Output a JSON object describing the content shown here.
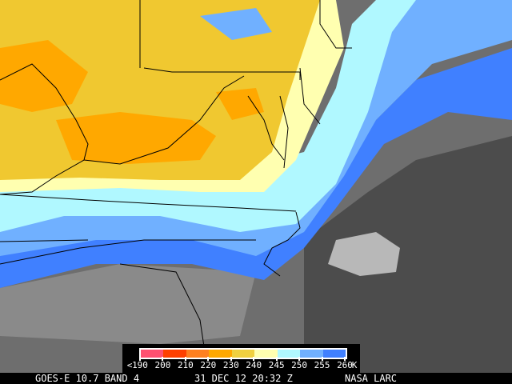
{
  "footer": {
    "satellite": "GOES-E 10.7 BAND 4",
    "datetime": "31 DEC 12 20:32 Z",
    "credit": "NASA LARC"
  },
  "legend": {
    "less_than": "<",
    "unit": "K",
    "ticks": [
      "190",
      "200",
      "210",
      "220",
      "230",
      "240",
      "245",
      "250",
      "255",
      "260"
    ],
    "colors": [
      "#ff5070",
      "#ff4000",
      "#ff8020",
      "#ffa800",
      "#f0d040",
      "#ffffb0",
      "#b0f8ff",
      "#70b0ff",
      "#4080ff"
    ]
  },
  "map_colors": {
    "warm_cloud_free": "#f0c830",
    "orange": "#ffa800",
    "light_yellow": "#ffffb0",
    "cyan": "#b0f8ff",
    "light_blue": "#70b0ff",
    "blue": "#4080ff",
    "cloud_gray": "#707070",
    "border": "#000000"
  }
}
